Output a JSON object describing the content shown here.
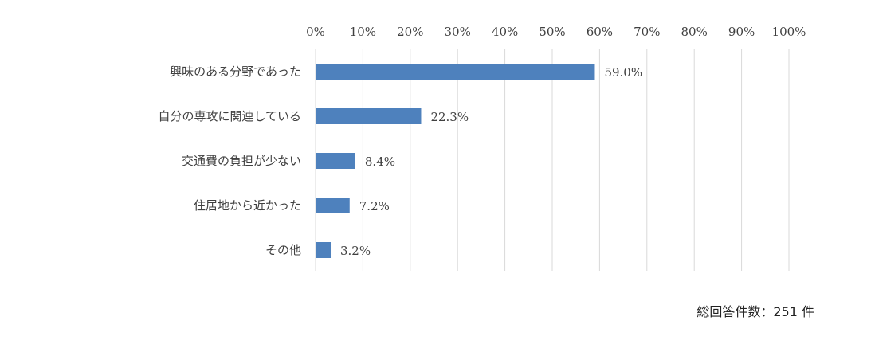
{
  "chart_data": {
    "type": "bar",
    "orientation": "horizontal",
    "categories": [
      "興味のある分野であった",
      "自分の専攻に関連している",
      "交通費の負担が少ない",
      "住居地から近かった",
      "その他"
    ],
    "values": [
      59.0,
      22.3,
      8.4,
      7.2,
      3.2
    ],
    "value_labels": [
      "59.0%",
      "22.3%",
      "8.4%",
      "7.2%",
      "3.2%"
    ],
    "x_ticks": [
      "0%",
      "10%",
      "20%",
      "30%",
      "40%",
      "50%",
      "60%",
      "70%",
      "80%",
      "90%",
      "100%"
    ],
    "xlim": [
      0,
      100
    ],
    "x_axis_position": "top",
    "grid": true,
    "bar_color": "#4e81bd",
    "grid_color": "#d9d9d9"
  },
  "note": "総回答件数：251 件"
}
